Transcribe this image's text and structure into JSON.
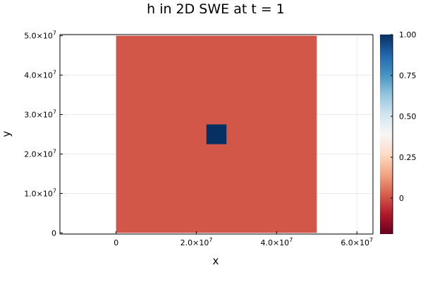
{
  "chart_data": {
    "type": "heatmap",
    "title": "h in 2D SWE at t = 1",
    "xlabel": "x",
    "ylabel": "y",
    "xlim": [
      -14000000,
      64000000
    ],
    "ylim": [
      -300000,
      50300000
    ],
    "grid": true,
    "x_ticks": [
      {
        "value": 0,
        "mantissa": "0",
        "exp": ""
      },
      {
        "value": 20000000,
        "mantissa": "2.0×10",
        "exp": "7"
      },
      {
        "value": 40000000,
        "mantissa": "4.0×10",
        "exp": "7"
      },
      {
        "value": 60000000,
        "mantissa": "6.0×10",
        "exp": "7"
      }
    ],
    "y_ticks": [
      {
        "value": 0,
        "mantissa": "0",
        "exp": ""
      },
      {
        "value": 10000000,
        "mantissa": "1.0×10",
        "exp": "7"
      },
      {
        "value": 20000000,
        "mantissa": "2.0×10",
        "exp": "7"
      },
      {
        "value": 30000000,
        "mantissa": "3.0×10",
        "exp": "7"
      },
      {
        "value": 40000000,
        "mantissa": "4.0×10",
        "exp": "7"
      },
      {
        "value": 50000000,
        "mantissa": "5.0×10",
        "exp": "7"
      }
    ],
    "cells": [
      {
        "x0": 0,
        "x1": 50000000,
        "y0": 0,
        "y1": 50000000,
        "value": 0
      },
      {
        "x0": 22500000,
        "x1": 27500000,
        "y0": 22500000,
        "y1": 27500000,
        "value": 1
      }
    ],
    "colorbar": {
      "range": [
        -0.22,
        1.0
      ],
      "ticks": [
        {
          "value": 0,
          "label": "0"
        },
        {
          "value": 0.25,
          "label": "0.25"
        },
        {
          "value": 0.5,
          "label": "0.50"
        },
        {
          "value": 0.75,
          "label": "0.75"
        },
        {
          "value": 1.0,
          "label": "1.00"
        }
      ],
      "colormap": "RdBu",
      "stops": [
        "#67001f",
        "#b2182b",
        "#d6604d",
        "#f4a582",
        "#fddbc7",
        "#f7f7f7",
        "#d1e5f0",
        "#92c5de",
        "#4393c3",
        "#2166ac",
        "#053061"
      ]
    },
    "cell_colors": {
      "0": "#d25748",
      "1": "#053061"
    }
  }
}
